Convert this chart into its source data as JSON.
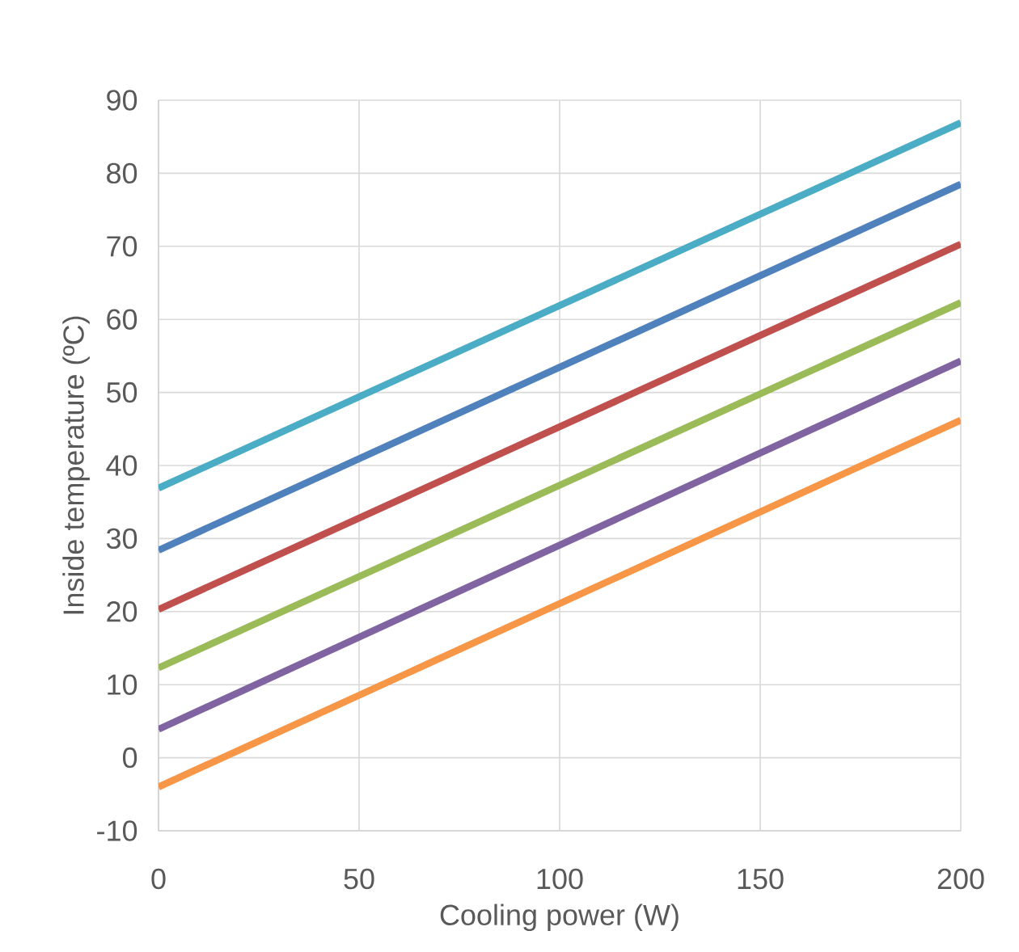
{
  "chart_data": {
    "type": "line",
    "xlabel": "Cooling power (W)",
    "ylabel": "Inside temperature (ºC)",
    "x": [
      0,
      200
    ],
    "series": [
      {
        "color": "#4bacc6",
        "values": [
          36.9,
          86.9
        ]
      },
      {
        "color": "#4f81bd",
        "values": [
          28.4,
          78.5
        ]
      },
      {
        "color": "#c0504d",
        "values": [
          20.3,
          70.3
        ]
      },
      {
        "color": "#9bbb59",
        "values": [
          12.3,
          62.3
        ]
      },
      {
        "color": "#8064a2",
        "values": [
          3.9,
          54.3
        ]
      },
      {
        "color": "#f79646",
        "values": [
          -4.0,
          46.2
        ]
      }
    ],
    "xlim": [
      0,
      200
    ],
    "xticks": [
      0,
      50,
      100,
      150,
      200
    ],
    "ylim": [
      -10,
      90
    ],
    "yticks": [
      -10,
      0,
      10,
      20,
      30,
      40,
      50,
      60,
      70,
      80,
      90
    ],
    "grid": true,
    "marker": "none",
    "line_style": "solid"
  }
}
